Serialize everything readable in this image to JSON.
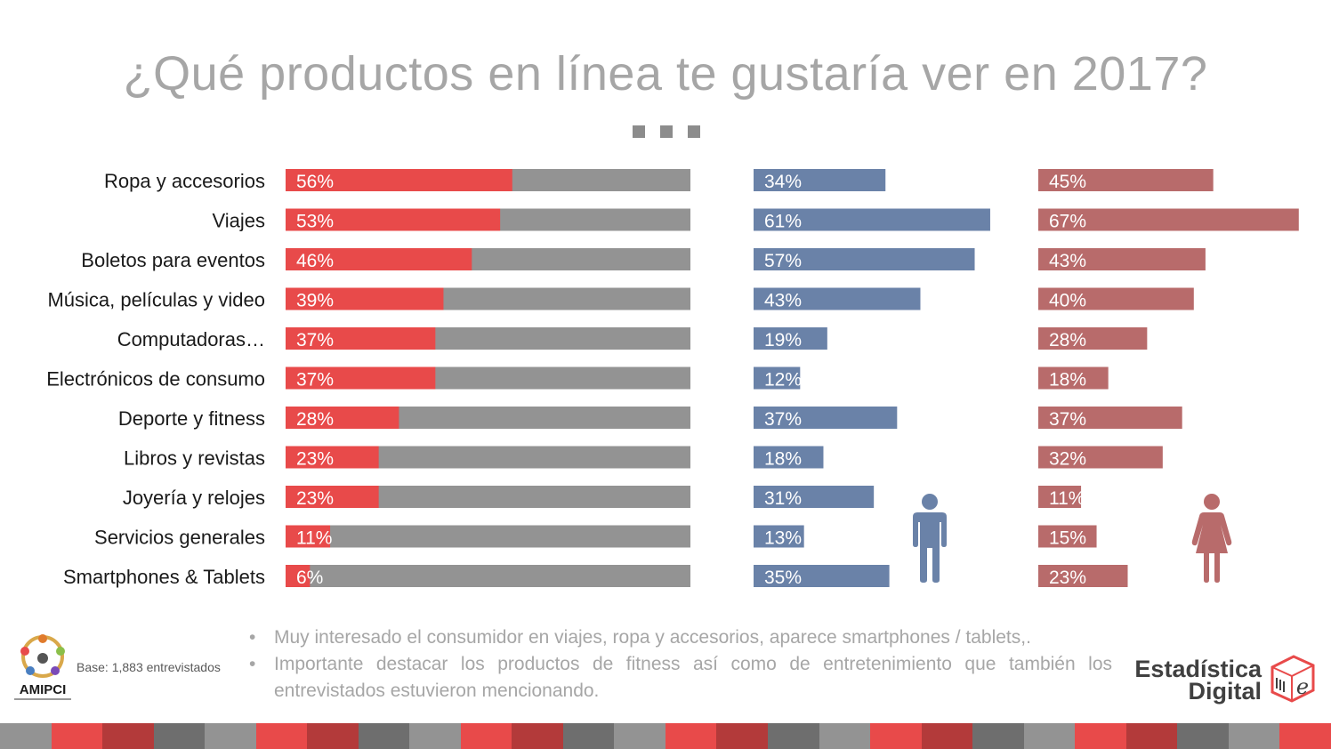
{
  "title": "¿Qué productos en línea te gustaría ver en 2017?",
  "base_note": "Base: 1,883 entrevistados",
  "notes": [
    "Muy interesado el consumidor en viajes, ropa y accesorios, aparece smartphones / tablets,.",
    "Importante destacar los productos de fitness así como de entretenimiento que también los entrevistados estuvieron mencionando."
  ],
  "logos": {
    "amipci": "AMIPCI",
    "estadistica_line1": "Estadística",
    "estadistica_line2": "Digital",
    "estadistica_mark": "e"
  },
  "colors": {
    "total": "#e84a4a",
    "total_remainder": "#939393",
    "men": "#6a82a8",
    "women": "#b86b6b",
    "title": "#a6a6a6"
  },
  "icons": [
    "man-icon",
    "woman-icon",
    "amipci-logo-icon",
    "estadistica-digital-logo-icon"
  ],
  "chart_data": {
    "type": "bar",
    "orientation": "horizontal",
    "categories": [
      "Ropa y accesorios",
      "Viajes",
      "Boletos para eventos",
      "Música, películas y video",
      "Computadoras…",
      "Electrónicos de consumo",
      "Deporte y fitness",
      "Libros y revistas",
      "Joyería y relojes",
      "Servicios generales",
      "Smartphones & Tablets"
    ],
    "series": [
      {
        "values": [
          56,
          53,
          46,
          39,
          37,
          37,
          28,
          23,
          23,
          11,
          6
        ],
        "labels": [
          "56%",
          "53%",
          "46%",
          "39%",
          "37%",
          "37%",
          "28%",
          "23%",
          "23%",
          "11%",
          "6%"
        ]
      },
      {
        "values": [
          34,
          61,
          57,
          43,
          19,
          12,
          37,
          18,
          31,
          13,
          35
        ],
        "labels": [
          "34%",
          "61%",
          "57%",
          "43%",
          "19%",
          "12%",
          "37%",
          "18%",
          "31%",
          "13%",
          "35%"
        ]
      },
      {
        "values": [
          45,
          67,
          43,
          40,
          28,
          18,
          37,
          32,
          11,
          15,
          23
        ],
        "labels": [
          "45%",
          "67%",
          "43%",
          "40%",
          "28%",
          "18%",
          "37%",
          "32%",
          "11%",
          "15%",
          "23%"
        ]
      }
    ],
    "xlim": [
      0,
      100
    ],
    "grid": false,
    "legend": "none"
  }
}
